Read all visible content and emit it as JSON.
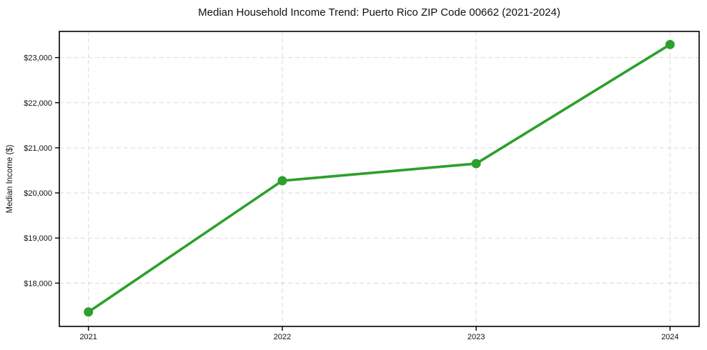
{
  "chart_data": {
    "type": "line",
    "title": "Median Household Income Trend: Puerto Rico ZIP Code 00662 (2021-2024)",
    "xlabel": "",
    "ylabel": "Median Income ($)",
    "x": [
      2021,
      2022,
      2023,
      2024
    ],
    "x_tick_labels": [
      "2021",
      "2022",
      "2023",
      "2024"
    ],
    "y_ticks": [
      18000,
      19000,
      20000,
      21000,
      22000,
      23000
    ],
    "y_tick_labels": [
      "$18,000",
      "$19,000",
      "$20,000",
      "$21,000",
      "$22,000",
      "$23,000"
    ],
    "series": [
      {
        "values": [
          17360,
          20270,
          20650,
          23290
        ]
      }
    ],
    "xlim": [
      2020.85,
      2024.15
    ],
    "ylim": [
      17040,
      23580
    ],
    "grid": true,
    "grid_style": "dashed",
    "legend_position": "none",
    "marker": "circle",
    "colors": {
      "line": "#2ca02c",
      "marker": "#2ca02c",
      "grid": "#d9d9d9",
      "spine": "#000000",
      "text": "#111111",
      "background": "#ffffff"
    }
  }
}
